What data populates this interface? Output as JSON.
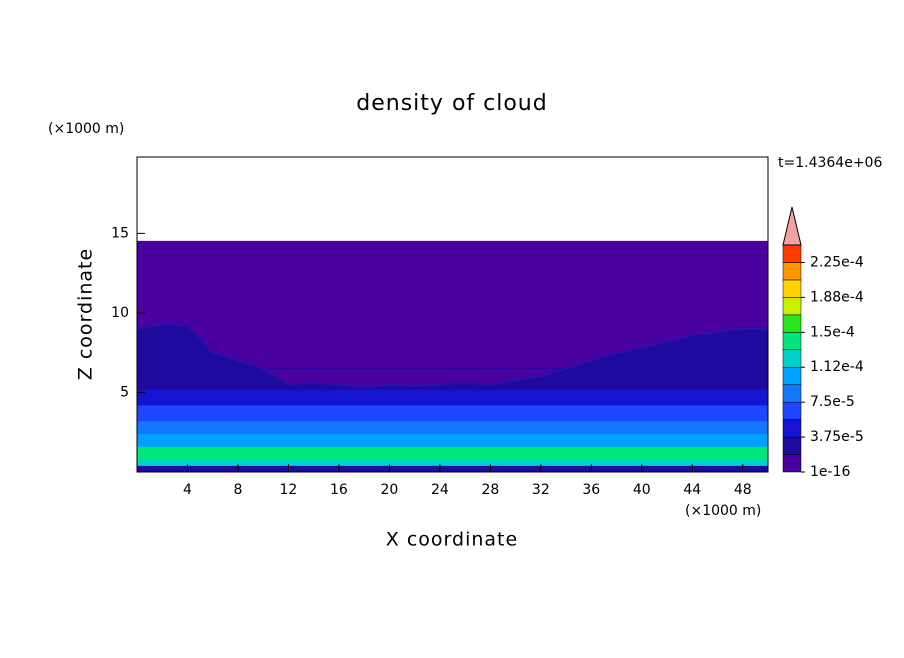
{
  "chart_data": {
    "type": "contour",
    "title": "density of cloud",
    "x_label": "X coordinate",
    "y_label": "Z coordinate",
    "x_unit": "(×1000 m)",
    "y_unit": "(×1000 m)",
    "time_label": "t=1.4364e+06",
    "xlim": [
      0,
      50
    ],
    "ylim": [
      0,
      19.8
    ],
    "xticks": [
      4,
      8,
      12,
      16,
      20,
      24,
      28,
      32,
      36,
      40,
      44,
      48
    ],
    "yticks": [
      5,
      10,
      15
    ],
    "domain_top": 14.5,
    "x": [
      0,
      2,
      4,
      6,
      8,
      10,
      12,
      14,
      16,
      18,
      20,
      22,
      24,
      26,
      28,
      30,
      32,
      34,
      36,
      38,
      40,
      42,
      44,
      46,
      48,
      50
    ],
    "cloud_top": [
      9.0,
      9.3,
      9.2,
      7.5,
      7.0,
      6.5,
      5.5,
      5.6,
      5.5,
      5.3,
      5.5,
      5.4,
      5.5,
      5.6,
      5.5,
      5.8,
      6.0,
      6.5,
      7.0,
      7.5,
      7.8,
      8.2,
      8.6,
      8.8,
      9.0,
      9.0
    ],
    "above_cloud_density": 1e-16,
    "z_bands": [
      0,
      0.4,
      0.8,
      1.6,
      2.4,
      3.2,
      4.2,
      5.2,
      6.5
    ],
    "band_density": [
      1.9e-05,
      0.00012,
      0.000135,
      0.0001,
      8e-05,
      6e-05,
      4e-05,
      3e-05,
      2e-05
    ],
    "levels": [
      1e-16,
      1.875e-05,
      3.75e-05,
      5.625e-05,
      7.5e-05,
      9.375e-05,
      0.0001125,
      0.00013125,
      0.00015,
      0.00016875,
      0.0001875,
      0.00020625,
      0.000225,
      0.00024375
    ],
    "level_colors": [
      "#4b00a0",
      "#1e0a9c",
      "#1414d2",
      "#1e46ff",
      "#1478ff",
      "#00a0ff",
      "#00d2c8",
      "#00e678",
      "#28e61e",
      "#c8f000",
      "#ffd200",
      "#ff9600",
      "#ff3c00"
    ],
    "over_color": "#f4a0a0",
    "level_ticks": [
      {
        "value": 1e-16,
        "label": "1e-16"
      },
      {
        "value": 3.75e-05,
        "label": "3.75e-5"
      },
      {
        "value": 7.5e-05,
        "label": "7.5e-5"
      },
      {
        "value": 0.0001125,
        "label": "1.12e-4"
      },
      {
        "value": 0.00015,
        "label": "1.5e-4"
      },
      {
        "value": 0.0001875,
        "label": "1.88e-4"
      },
      {
        "value": 0.000225,
        "label": "2.25e-4"
      }
    ]
  }
}
